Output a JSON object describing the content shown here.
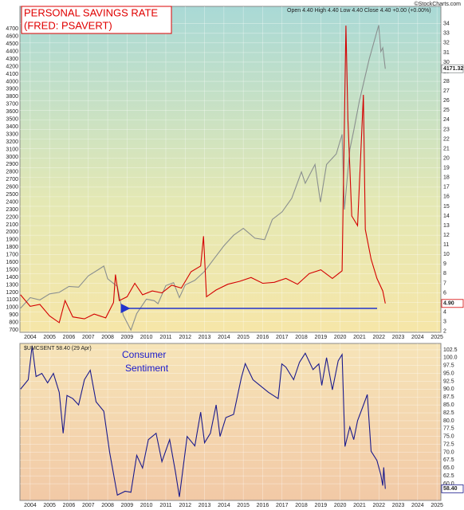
{
  "header": {
    "ohlc": "Open 4.40  High 4.40  Low 4.40  Close 4.40  +0.00 (+0.00%)",
    "source": "©StockCharts.com"
  },
  "chart_data": [
    {
      "type": "line",
      "title": [
        "PERSONAL SAVINGS RATE",
        "(FRED: PSAVERT)"
      ],
      "xlim": [
        2003.47,
        2025.2
      ],
      "xticks": [
        2004,
        2005,
        2006,
        2007,
        2008,
        2009,
        2010,
        2011,
        2012,
        2013,
        2014,
        2015,
        2016,
        2017,
        2018,
        2019,
        2020,
        2021,
        2022,
        2023,
        2024,
        2025
      ],
      "ylim": [
        670,
        5000
      ],
      "yticks": [
        700,
        800,
        900,
        1000,
        1100,
        1200,
        1300,
        1400,
        1500,
        1600,
        1700,
        1800,
        1900,
        2000,
        2100,
        2200,
        2300,
        2400,
        2500,
        2600,
        2700,
        2800,
        2900,
        3000,
        3100,
        3200,
        3300,
        3400,
        3500,
        3600,
        3700,
        3800,
        3900,
        4000,
        4100,
        4200,
        4300,
        4400,
        4500,
        4600,
        4700
      ],
      "y2lim": [
        1.9,
        35.8
      ],
      "y2ticks": [
        2,
        3,
        4,
        5,
        6,
        7,
        8,
        9,
        10,
        11,
        12,
        13,
        14,
        15,
        16,
        17,
        18,
        19,
        20,
        21,
        22,
        23,
        24,
        25,
        26,
        27,
        28,
        29,
        30,
        31,
        32,
        33,
        34
      ],
      "grid": true,
      "series": [
        {
          "color": "#8a8f8f",
          "last_label": "4171.32",
          "x": [
            2003.5,
            2004,
            2004.5,
            2005,
            2005.5,
            2006,
            2006.5,
            2007,
            2007.5,
            2007.8,
            2008,
            2008.5,
            2008.8,
            2009.2,
            2009.5,
            2010,
            2010.4,
            2010.6,
            2011,
            2011.4,
            2011.7,
            2012,
            2012.5,
            2013,
            2013.5,
            2014,
            2014.5,
            2015,
            2015.6,
            2016.1,
            2016.5,
            2017,
            2017.5,
            2018,
            2018.2,
            2018.7,
            2018.98,
            2019.3,
            2019.8,
            2020.1,
            2020.22,
            2020.5,
            2020.7,
            2021,
            2021.5,
            2021.99,
            2022.1,
            2022.2,
            2022.33
          ],
          "values": [
            990,
            1130,
            1100,
            1180,
            1200,
            1280,
            1270,
            1420,
            1500,
            1550,
            1380,
            1280,
            900,
            700,
            920,
            1110,
            1090,
            1050,
            1290,
            1330,
            1130,
            1300,
            1360,
            1480,
            1650,
            1820,
            1960,
            2050,
            1920,
            1900,
            2170,
            2270,
            2450,
            2800,
            2650,
            2900,
            2400,
            2900,
            3040,
            3300,
            2300,
            3100,
            3350,
            3750,
            4300,
            4750,
            4400,
            4450,
            4171.32
          ]
        },
        {
          "color": "#d40000",
          "axis": "y2",
          "last_label": "4.90",
          "x": [
            2003.5,
            2004,
            2004.5,
            2005,
            2005.5,
            2005.8,
            2006.2,
            2006.8,
            2007.3,
            2007.9,
            2008.3,
            2008.4,
            2008.6,
            2009,
            2009.4,
            2009.8,
            2010.3,
            2010.8,
            2011.3,
            2011.8,
            2012.3,
            2012.8,
            2012.95,
            2013.1,
            2013.6,
            2014.2,
            2014.8,
            2015.4,
            2016,
            2016.6,
            2017.2,
            2017.8,
            2018.4,
            2019,
            2019.6,
            2020.1,
            2020.3,
            2020.4,
            2020.6,
            2020.9,
            2021.2,
            2021.3,
            2021.6,
            2021.9,
            2022.2,
            2022.33
          ],
          "values": [
            5.8,
            4.6,
            4.8,
            3.6,
            2.9,
            5.2,
            3.5,
            3.3,
            3.8,
            3.4,
            5.0,
            7.9,
            5.2,
            5.6,
            7.0,
            5.8,
            6.2,
            6.0,
            6.8,
            6.5,
            8.2,
            8.8,
            11.9,
            5.6,
            6.3,
            6.9,
            7.2,
            7.6,
            7.0,
            7.1,
            7.5,
            6.9,
            8.0,
            8.4,
            7.5,
            8.3,
            33.8,
            24.0,
            14.0,
            13.0,
            26.6,
            12.6,
            9.5,
            7.5,
            6.2,
            4.9
          ]
        }
      ]
    },
    {
      "type": "line",
      "annotation": [
        "Consumer",
        "Sentiment"
      ],
      "xlim": [
        2003.47,
        2025.2
      ],
      "xticks": [
        2004,
        2005,
        2006,
        2007,
        2008,
        2009,
        2010,
        2011,
        2012,
        2013,
        2014,
        2015,
        2016,
        2017,
        2018,
        2019,
        2020,
        2021,
        2022,
        2023,
        2024,
        2025
      ],
      "ylim": [
        54.7,
        104.5
      ],
      "yticks": [
        {
          "value": 60,
          "label": "60.0"
        },
        62.5,
        {
          "value": 65,
          "label": "65.0"
        },
        67.5,
        {
          "value": 70,
          "label": "70.0"
        },
        72.5,
        {
          "value": 75,
          "label": "75.0"
        },
        77.5,
        {
          "value": 80,
          "label": "80.0"
        },
        82.5,
        {
          "value": 85,
          "label": "85.0"
        },
        87.5,
        {
          "value": 90,
          "label": "90.0"
        },
        92.5,
        {
          "value": 95,
          "label": "95.0"
        },
        97.5,
        {
          "value": 100,
          "label": "100.0"
        },
        102.5
      ],
      "grid": true,
      "series": [
        {
          "name": "$UMCSENT 58.40 (29 Apr)",
          "color": "#1a1a8c",
          "last_label": "58.40",
          "x": [
            2003.5,
            2003.9,
            2004.1,
            2004.3,
            2004.6,
            2004.9,
            2005.2,
            2005.5,
            2005.7,
            2005.9,
            2006.2,
            2006.5,
            2006.8,
            2007.1,
            2007.4,
            2007.8,
            2008.1,
            2008.5,
            2008.9,
            2009.2,
            2009.5,
            2009.8,
            2010.1,
            2010.5,
            2010.8,
            2011.2,
            2011.5,
            2011.7,
            2012.1,
            2012.5,
            2012.8,
            2013.0,
            2013.3,
            2013.6,
            2013.8,
            2014.1,
            2014.5,
            2014.9,
            2015.1,
            2015.5,
            2015.9,
            2016.3,
            2016.8,
            2016.99,
            2017.2,
            2017.6,
            2017.9,
            2018.2,
            2018.6,
            2018.9,
            2019.05,
            2019.3,
            2019.6,
            2019.9,
            2020.1,
            2020.25,
            2020.5,
            2020.7,
            2020.9,
            2021.2,
            2021.4,
            2021.6,
            2021.9,
            2022.1,
            2022.2,
            2022.25,
            2022.33
          ],
          "values": [
            90,
            93,
            103.8,
            94,
            95,
            92,
            95,
            89,
            76,
            88,
            87,
            85,
            93,
            96,
            86,
            83,
            70,
            56.4,
            57.6,
            57.3,
            69,
            65,
            74,
            76,
            67,
            74,
            63.7,
            55.8,
            75,
            72,
            82.7,
            73,
            76,
            85,
            75,
            81,
            82,
            93.6,
            98.1,
            93,
            91,
            89,
            87,
            98,
            97,
            93,
            98.5,
            101.4,
            96.2,
            98,
            91.2,
            100,
            89.8,
            99,
            101,
            71.8,
            78,
            74,
            80,
            84.9,
            88.3,
            70.3,
            67.4,
            62.8,
            59.4,
            65.2,
            58.4
          ]
        }
      ]
    }
  ]
}
